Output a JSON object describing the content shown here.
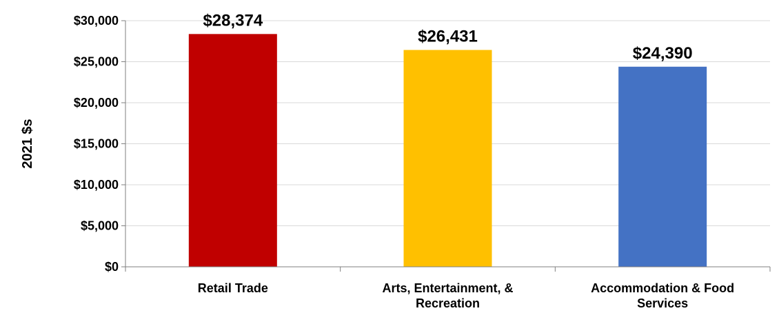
{
  "chart_data": {
    "type": "bar",
    "categories": [
      [
        "Retail Trade"
      ],
      [
        "Arts, Entertainment, &",
        "Recreation"
      ],
      [
        "Accommodation & Food",
        "Services"
      ]
    ],
    "values": [
      28374,
      26431,
      24390
    ],
    "data_labels": [
      "$28,374",
      "$26,431",
      "$24,390"
    ],
    "bar_colors": [
      "#C00000",
      "#FFC000",
      "#4472C4"
    ],
    "ylabel": "2021 $s",
    "ylim": [
      0,
      30000
    ],
    "yticks": [
      0,
      5000,
      10000,
      15000,
      20000,
      25000,
      30000
    ],
    "ytick_labels": [
      "$0",
      "$5,000",
      "$10,000",
      "$15,000",
      "$20,000",
      "$25,000",
      "$30,000"
    ],
    "grid": true,
    "gridline_color": "#D9D9D9",
    "legend": "none"
  }
}
